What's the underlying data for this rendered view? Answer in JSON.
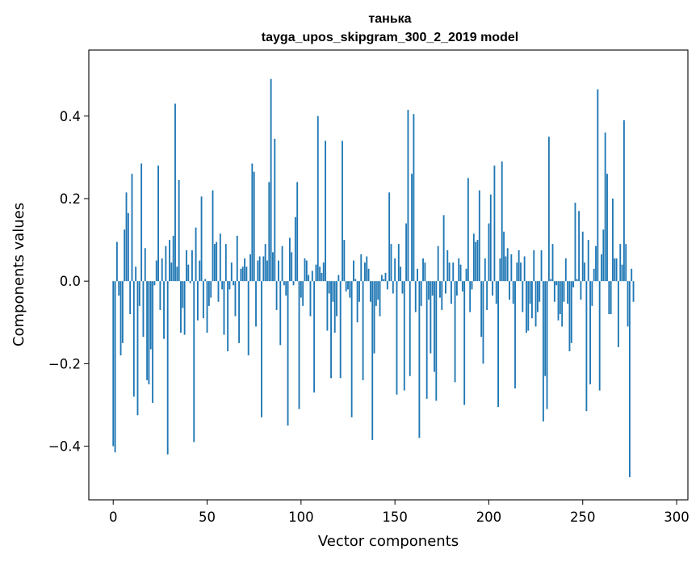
{
  "chart_data": {
    "type": "bar",
    "title": "танька",
    "subtitle": "tayga_upos_skipgram_300_2_2019 model",
    "xlabel": "Vector components",
    "ylabel": "Components values",
    "xlim": [
      -13,
      306
    ],
    "ylim": [
      -0.53,
      0.56
    ],
    "xticks": [
      0,
      50,
      100,
      150,
      200,
      250,
      300
    ],
    "yticks": [
      -0.4,
      -0.2,
      0.0,
      0.2,
      0.4
    ],
    "ytick_labels": [
      "−0.4",
      "−0.2",
      "0.0",
      "0.2",
      "0.4"
    ],
    "xtick_labels": [
      "0",
      "50",
      "100",
      "150",
      "200",
      "250",
      "300"
    ],
    "bar_color": "#1f77b4",
    "grid": false,
    "x_start": 0,
    "values": [
      -0.4,
      -0.415,
      0.095,
      -0.035,
      -0.18,
      -0.15,
      0.125,
      0.215,
      0.165,
      -0.08,
      0.26,
      -0.28,
      0.035,
      -0.325,
      -0.06,
      0.285,
      -0.135,
      0.08,
      -0.24,
      -0.25,
      -0.165,
      -0.295,
      -0.01,
      0.05,
      0.28,
      -0.07,
      0.055,
      -0.14,
      0.085,
      -0.42,
      0.1,
      0.045,
      0.11,
      0.43,
      0.035,
      0.245,
      -0.125,
      -0.065,
      -0.13,
      0.075,
      0.04,
      -0.005,
      0.075,
      -0.39,
      0.13,
      -0.095,
      0.05,
      0.205,
      -0.09,
      0.005,
      -0.125,
      -0.06,
      -0.04,
      0.22,
      0.09,
      0.095,
      -0.05,
      0.115,
      -0.02,
      -0.13,
      0.09,
      -0.17,
      -0.02,
      0.045,
      -0.01,
      -0.085,
      0.11,
      -0.15,
      0.03,
      0.035,
      0.055,
      0.035,
      -0.18,
      0.065,
      0.285,
      0.265,
      -0.11,
      0.05,
      0.06,
      -0.33,
      0.06,
      0.09,
      0.05,
      0.24,
      0.49,
      0.07,
      0.345,
      -0.07,
      0.05,
      -0.155,
      0.085,
      -0.01,
      -0.035,
      -0.35,
      0.105,
      0.07,
      -0.01,
      0.155,
      0.24,
      -0.31,
      -0.04,
      -0.06,
      0.055,
      0.05,
      0.015,
      -0.085,
      0.025,
      -0.27,
      0.04,
      0.4,
      0.035,
      0.02,
      0.045,
      0.34,
      -0.12,
      -0.03,
      -0.235,
      -0.05,
      -0.125,
      -0.085,
      0.015,
      -0.235,
      0.34,
      0.1,
      -0.025,
      -0.02,
      -0.04,
      -0.33,
      0.05,
      0.005,
      -0.1,
      -0.05,
      0.065,
      -0.24,
      0.045,
      0.06,
      0.03,
      -0.05,
      -0.385,
      -0.175,
      -0.06,
      -0.045,
      -0.085,
      0.015,
      0.005,
      0.02,
      -0.02,
      0.215,
      0.09,
      -0.03,
      0.055,
      -0.275,
      0.09,
      0.035,
      -0.03,
      -0.265,
      0.14,
      0.415,
      -0.23,
      0.26,
      0.405,
      -0.075,
      0.03,
      -0.38,
      -0.06,
      0.055,
      0.045,
      -0.285,
      -0.045,
      -0.175,
      -0.035,
      -0.22,
      -0.29,
      0.085,
      -0.04,
      -0.07,
      0.16,
      -0.03,
      0.075,
      0.045,
      -0.055,
      0.045,
      -0.245,
      -0.035,
      0.055,
      0.04,
      -0.025,
      -0.3,
      0.03,
      0.25,
      -0.075,
      -0.02,
      0.115,
      0.095,
      0.1,
      0.22,
      -0.135,
      -0.2,
      0.055,
      -0.07,
      0.14,
      0.21,
      -0.035,
      0.28,
      -0.055,
      -0.305,
      0.055,
      0.29,
      0.12,
      0.06,
      0.08,
      -0.045,
      0.065,
      -0.055,
      -0.26,
      0.045,
      0.075,
      0.045,
      -0.075,
      0.06,
      -0.125,
      -0.12,
      -0.055,
      -0.09,
      0.075,
      -0.11,
      -0.075,
      -0.05,
      0.075,
      -0.34,
      -0.23,
      -0.31,
      0.35,
      0.005,
      0.09,
      -0.05,
      -0.01,
      -0.095,
      -0.08,
      -0.11,
      -0.05,
      0.055,
      -0.055,
      -0.17,
      -0.15,
      -0.015,
      0.19,
      0.005,
      0.17,
      -0.045,
      0.12,
      0.045,
      -0.315,
      0.1,
      -0.25,
      -0.06,
      0.03,
      0.085,
      0.465,
      -0.265,
      0.065,
      0.125,
      0.36,
      0.26,
      -0.08,
      -0.08,
      0.2,
      0.055,
      0.055,
      -0.16,
      0.09,
      0.04,
      0.39,
      0.09,
      -0.11,
      -0.475,
      0.03,
      -0.05
    ]
  }
}
